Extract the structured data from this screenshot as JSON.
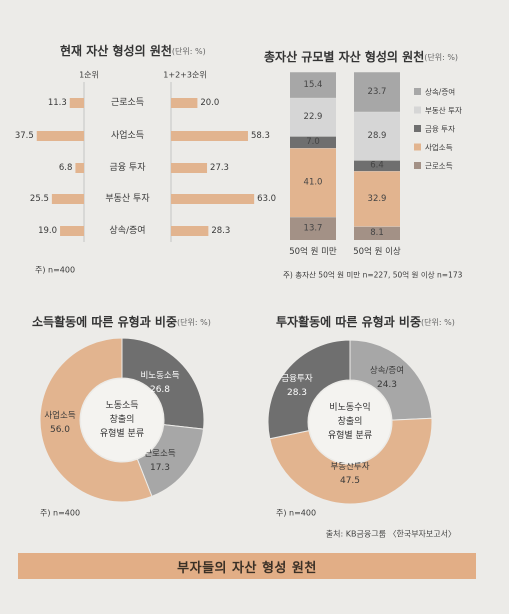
{
  "colors": {
    "tan": "#e2b48f",
    "tan_dark": "#d9a77e",
    "dark_gray": "#6f6f6f",
    "mid_gray": "#a7a7a7",
    "light_gray": "#d6d6d6",
    "muted_brown": "#a39186",
    "background": "#ecebe8"
  },
  "footer_source": "출처: KB금융그룹 〈한국부자보고서〉",
  "banner": "부자들의 자산 형성 원천",
  "chart_data": [
    {
      "id": "current",
      "type": "bar",
      "orientation": "horizontal-butterfly",
      "title": "현재 자산 형성의 원천",
      "unit_note": "(단위: %)",
      "categories": [
        "근로소득",
        "사업소득",
        "금융 투자",
        "부동산 투자",
        "상속/증여"
      ],
      "series": [
        {
          "name": "1순위",
          "values": [
            11.3,
            37.5,
            6.8,
            25.5,
            19.0
          ],
          "labels": [
            "11.3",
            "37.5",
            "6.8",
            "25.5",
            "19.0"
          ],
          "direction": "left"
        },
        {
          "name": "1+2+3순위",
          "values": [
            20.0,
            58.3,
            27.3,
            63.0,
            28.3
          ],
          "labels": [
            "20.0",
            "58.3",
            "27.3",
            "63.0",
            "28.3"
          ],
          "direction": "right"
        }
      ],
      "note": "주) n=400"
    },
    {
      "id": "by_size",
      "type": "bar",
      "orientation": "stacked-vertical",
      "title": "총자산 규모별 자산 형성의 원천",
      "unit_note": "(단위: %)",
      "categories": [
        "50억 원 미만",
        "50억 원 이상"
      ],
      "series": [
        {
          "name": "근로소득",
          "values": [
            13.7,
            8.1
          ],
          "labels": [
            "13.7",
            "8.1"
          ],
          "color": "#a39186"
        },
        {
          "name": "사업소득",
          "values": [
            41.0,
            32.9
          ],
          "labels": [
            "41.0",
            "32.9"
          ],
          "color": "#e2b48f"
        },
        {
          "name": "금융 투자",
          "values": [
            7.0,
            6.4
          ],
          "labels": [
            "7.0",
            "6.4"
          ],
          "color": "#6f6f6f"
        },
        {
          "name": "부동산 투자",
          "values": [
            22.9,
            28.9
          ],
          "labels": [
            "22.9",
            "28.9"
          ],
          "color": "#d6d6d6"
        },
        {
          "name": "상속/증여",
          "values": [
            15.4,
            23.7
          ],
          "labels": [
            "15.4",
            "23.7"
          ],
          "color": "#a7a7a7"
        }
      ],
      "legend_order": [
        "상속/증여",
        "부동산 투자",
        "금융 투자",
        "사업소득",
        "근로소득"
      ],
      "legend_position": "right",
      "note": "주) 총자산 50억 원 미만 n=227, 50억 원 이상 n=173"
    },
    {
      "id": "income",
      "type": "pie",
      "style": "donut",
      "title": "소득활동에 따른 유형과 비중",
      "unit_note": "(단위: %)",
      "center_label": [
        "노동소득",
        "창출의",
        "유형별 분류"
      ],
      "slices": [
        {
          "name": "비노동소득",
          "value": 26.8,
          "label": "26.8",
          "color": "#6f6f6f"
        },
        {
          "name": "근로소득",
          "value": 17.3,
          "label": "17.3",
          "color": "#a7a7a7"
        },
        {
          "name": "사업소득",
          "value": 56.0,
          "label": "56.0",
          "color": "#e2b48f"
        }
      ],
      "note": "주) n=400"
    },
    {
      "id": "investment",
      "type": "pie",
      "style": "donut",
      "title": "투자활동에 따른 유형과 비중",
      "unit_note": "(단위: %)",
      "center_label": [
        "비노동수익",
        "창출의",
        "유형별 분류"
      ],
      "slices": [
        {
          "name": "상속/증여",
          "value": 24.3,
          "label": "24.3",
          "color": "#a7a7a7"
        },
        {
          "name": "부동산투자",
          "value": 47.5,
          "label": "47.5",
          "color": "#e2b48f"
        },
        {
          "name": "금융투자",
          "value": 28.3,
          "label": "28.3",
          "color": "#6f6f6f"
        }
      ],
      "note": "주) n=400"
    }
  ]
}
